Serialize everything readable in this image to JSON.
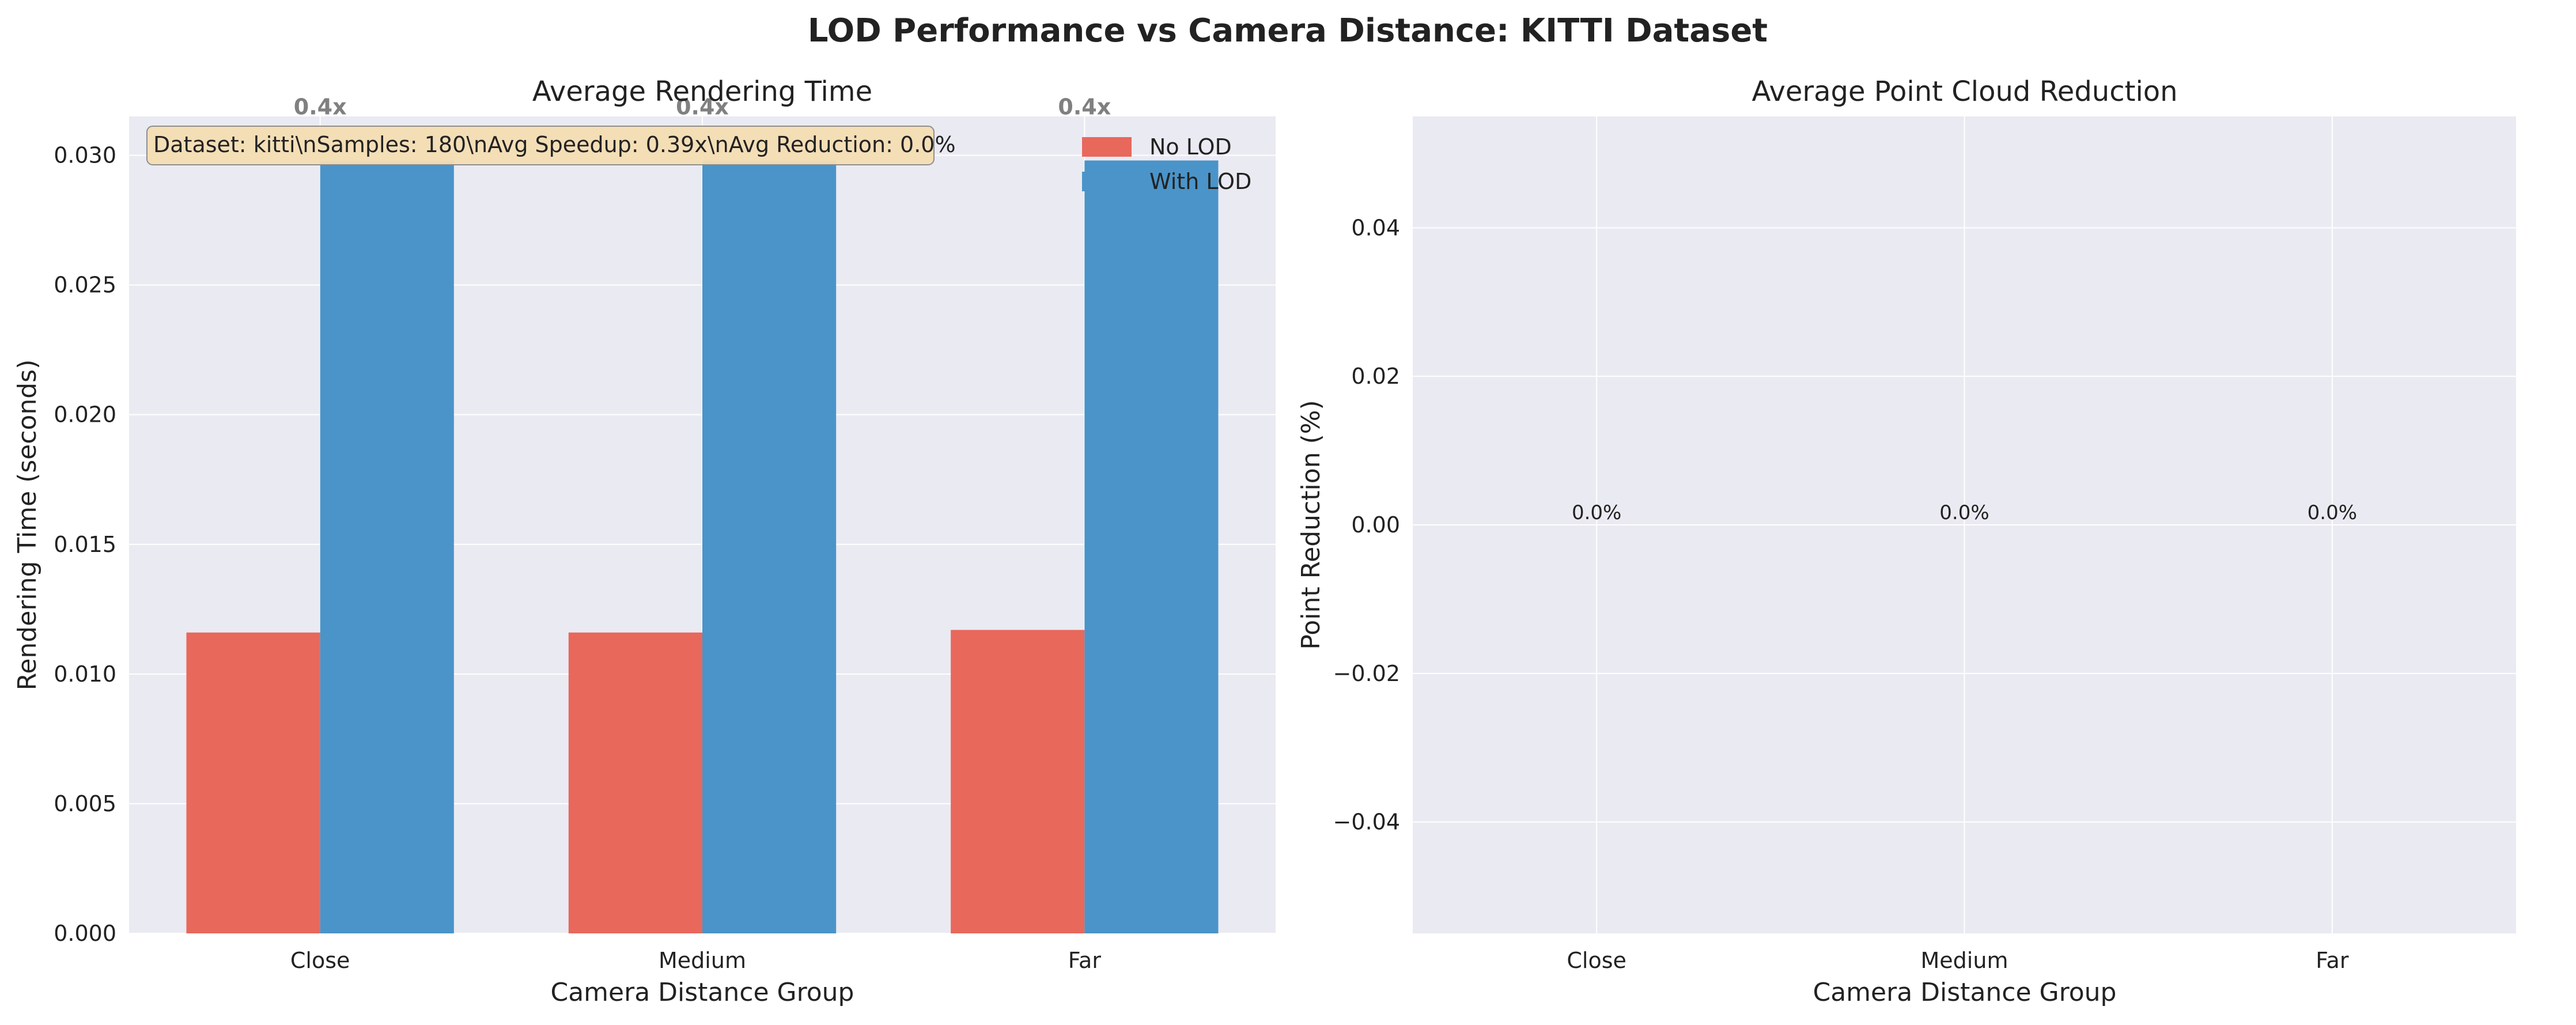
{
  "figure": {
    "title": "LOD Performance vs Camera Distance: KITTI Dataset",
    "background": "#ffffff",
    "axes_facecolor": "#eaeaf2",
    "grid_color": "#ffffff"
  },
  "chart_data": [
    {
      "type": "bar",
      "title": "Average Rendering Time",
      "xlabel": "Camera Distance Group",
      "ylabel": "Rendering Time (seconds)",
      "categories": [
        "Close",
        "Medium",
        "Far"
      ],
      "ylim": [
        0,
        0.0315
      ],
      "yticks": [
        0.0,
        0.005,
        0.01,
        0.015,
        0.02,
        0.025,
        0.03
      ],
      "ytick_labels": [
        "0.000",
        "0.005",
        "0.010",
        "0.015",
        "0.020",
        "0.025",
        "0.030"
      ],
      "grid": true,
      "legend_position": "top-right",
      "series": [
        {
          "name": "No LOD",
          "color": "#e8685c",
          "values": [
            0.0116,
            0.0116,
            0.0117
          ]
        },
        {
          "name": "With LOD",
          "color": "#4a94c9",
          "values": [
            0.0298,
            0.0298,
            0.0298
          ]
        }
      ],
      "bar_labels": [
        "0.4x",
        "0.4x",
        "0.4x"
      ],
      "annotation": "Dataset: kitti\\nSamples: 180\\nAvg Speedup: 0.39x\\nAvg Reduction: 0.0%"
    },
    {
      "type": "bar",
      "title": "Average Point Cloud Reduction",
      "xlabel": "Camera Distance Group",
      "ylabel": "Point Reduction (%)",
      "categories": [
        "Close",
        "Medium",
        "Far"
      ],
      "ylim": [
        -0.055,
        0.055
      ],
      "yticks": [
        -0.04,
        -0.02,
        0.0,
        0.02,
        0.04
      ],
      "ytick_labels": [
        "−0.04",
        "−0.02",
        "0.00",
        "0.02",
        "0.04"
      ],
      "grid": true,
      "values": [
        0.0,
        0.0,
        0.0
      ],
      "bar_labels": [
        "0.0%",
        "0.0%",
        "0.0%"
      ]
    }
  ]
}
